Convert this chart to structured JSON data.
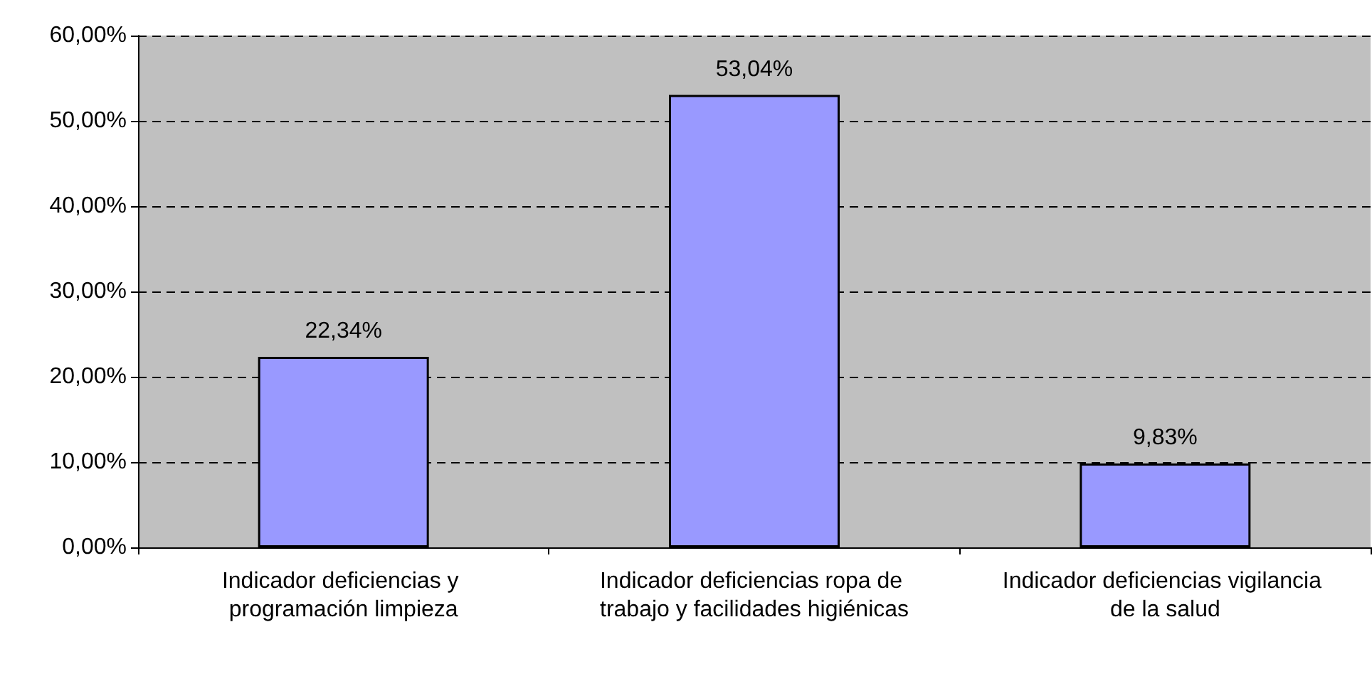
{
  "chart_data": {
    "type": "bar",
    "categories": [
      "Indicador deficiencias y programación limpieza",
      "Indicador deficiencias ropa de trabajo y facilidades higiénicas",
      "Indicador deficiencias vigilancia de la salud"
    ],
    "values": [
      22.34,
      53.04,
      9.83
    ],
    "value_labels": [
      "22,34%",
      "53,04%",
      "9,83%"
    ],
    "color": "#9999ff",
    "ylim": [
      0,
      60
    ],
    "yticks": [
      {
        "value": 0,
        "label": "0,00%"
      },
      {
        "value": 10,
        "label": "10,00%"
      },
      {
        "value": 20,
        "label": "20,00%"
      },
      {
        "value": 30,
        "label": "30,00%"
      },
      {
        "value": 40,
        "label": "40,00%"
      },
      {
        "value": 50,
        "label": "50,00%"
      },
      {
        "value": 60,
        "label": "60,00%"
      }
    ],
    "grid": "y"
  }
}
